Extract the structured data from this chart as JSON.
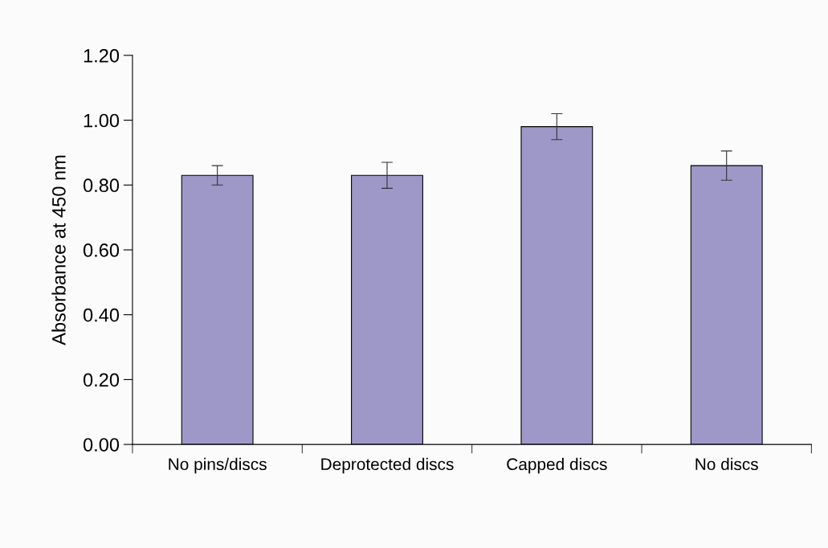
{
  "chart_data": {
    "type": "bar",
    "ylabel": "Absorbance at 450 nm",
    "categories": [
      "No pins/discs",
      "Deprotected discs",
      "Capped discs",
      "No discs"
    ],
    "values": [
      0.83,
      0.83,
      0.98,
      0.86
    ],
    "errors": [
      0.03,
      0.04,
      0.04,
      0.045
    ],
    "color": "#9e98c8",
    "ylim": [
      0,
      1.2
    ],
    "yticks": [
      {
        "value": 0,
        "label": "0.00"
      },
      {
        "value": 0.2,
        "label": "0.20"
      },
      {
        "value": 0.4,
        "label": "0.40"
      },
      {
        "value": 0.6,
        "label": "0.60"
      },
      {
        "value": 0.8,
        "label": "0.80"
      },
      {
        "value": 1.0,
        "label": "1.00"
      },
      {
        "value": 1.2,
        "label": "1.20"
      }
    ],
    "grid": false
  }
}
